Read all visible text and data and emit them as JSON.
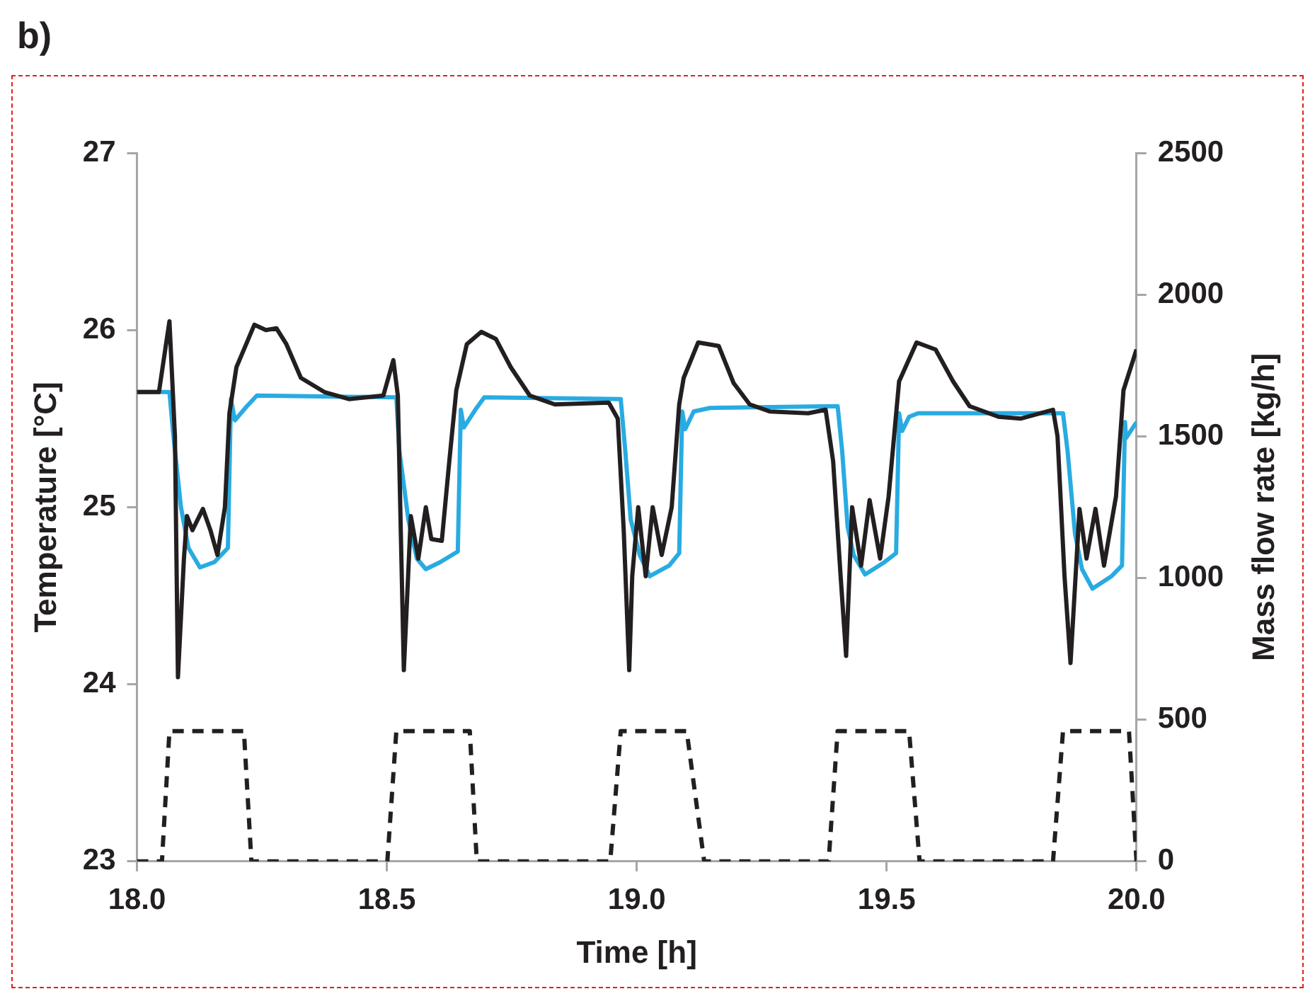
{
  "chart_data": {
    "type": "line",
    "xlabel": "Time [h]",
    "ylabel": "Temperature [°C]",
    "y2label": "Mass flow rate [kg/h]",
    "annotations": [
      "b)"
    ],
    "xlim": [
      18,
      20
    ],
    "xticks": [
      {
        "value": 18,
        "label": "18.0"
      },
      {
        "value": 18.5,
        "label": "18.5"
      },
      {
        "value": 19,
        "label": "19.0"
      },
      {
        "value": 19.5,
        "label": "19.5"
      },
      {
        "value": 20,
        "label": "20.0"
      }
    ],
    "ylim": [
      23,
      27
    ],
    "yticks": [
      23,
      24,
      25,
      26,
      27
    ],
    "y2lim": [
      0,
      2500
    ],
    "y2ticks": [
      0,
      500,
      1000,
      1500,
      2000,
      2500
    ],
    "grid": false,
    "legend": false,
    "marker": "none",
    "series": [
      {
        "color": "#231f20",
        "line_style": "solid",
        "x": [
          18,
          18.044,
          18.065,
          18.076,
          18.082,
          18.094,
          18.1,
          18.111,
          18.132,
          18.147,
          18.161,
          18.176,
          18.185,
          18.199,
          18.235,
          18.258,
          18.279,
          18.299,
          18.328,
          18.375,
          18.425,
          18.493,
          18.513,
          18.522,
          18.534,
          18.548,
          18.563,
          18.578,
          18.589,
          18.61,
          18.625,
          18.639,
          18.66,
          18.689,
          18.718,
          18.748,
          18.786,
          18.836,
          18.944,
          18.962,
          18.974,
          18.985,
          18.991,
          19.003,
          19.018,
          19.032,
          19.05,
          19.07,
          19.085,
          19.094,
          19.123,
          19.164,
          19.194,
          19.226,
          19.267,
          19.343,
          19.378,
          19.393,
          19.408,
          19.419,
          19.431,
          19.449,
          19.466,
          19.487,
          19.504,
          19.525,
          19.56,
          19.598,
          19.633,
          19.666,
          19.724,
          19.768,
          19.833,
          19.842,
          19.856,
          19.868,
          19.886,
          19.9,
          19.918,
          19.935,
          19.959,
          19.974,
          20
        ],
        "values": [
          25.65,
          25.65,
          26.05,
          25.4,
          24.04,
          24.71,
          24.95,
          24.87,
          24.99,
          24.87,
          24.73,
          25,
          25.53,
          25.79,
          26.03,
          26,
          26.01,
          25.92,
          25.73,
          25.65,
          25.61,
          25.63,
          25.83,
          25.63,
          24.08,
          24.95,
          24.71,
          25,
          24.82,
          24.81,
          25.26,
          25.66,
          25.92,
          25.99,
          25.95,
          25.79,
          25.63,
          25.58,
          25.59,
          25.5,
          24.87,
          24.08,
          24.61,
          25,
          24.61,
          25,
          24.73,
          25,
          25.58,
          25.73,
          25.93,
          25.91,
          25.7,
          25.58,
          25.54,
          25.53,
          25.55,
          25.26,
          24.61,
          24.16,
          25,
          24.67,
          25.04,
          24.71,
          25.06,
          25.71,
          25.93,
          25.89,
          25.71,
          25.57,
          25.51,
          25.5,
          25.55,
          25.4,
          24.61,
          24.12,
          24.99,
          24.71,
          24.99,
          24.67,
          25.06,
          25.66,
          25.89
        ]
      },
      {
        "color": "#29abe2",
        "line_style": "solid",
        "x": [
          18,
          18.065,
          18.073,
          18.088,
          18.103,
          18.126,
          18.155,
          18.182,
          18.188,
          18.196,
          18.22,
          18.24,
          18.519,
          18.525,
          18.543,
          18.56,
          18.578,
          18.607,
          18.642,
          18.648,
          18.654,
          18.677,
          18.695,
          18.968,
          18.977,
          18.988,
          19.006,
          19.026,
          19.065,
          19.085,
          19.091,
          19.097,
          19.114,
          19.147,
          19.402,
          19.411,
          19.422,
          19.434,
          19.457,
          19.496,
          19.519,
          19.525,
          19.531,
          19.545,
          19.563,
          19.853,
          19.862,
          19.877,
          19.891,
          19.912,
          19.95,
          19.971,
          19.977,
          19.979,
          20
        ],
        "values": [
          25.65,
          25.65,
          25.4,
          25,
          24.77,
          24.66,
          24.69,
          24.77,
          25.61,
          25.49,
          25.57,
          25.63,
          25.62,
          25.32,
          24.93,
          24.71,
          24.65,
          24.69,
          24.75,
          25.55,
          25.45,
          25.55,
          25.62,
          25.61,
          25.32,
          24.93,
          24.73,
          24.61,
          24.67,
          24.74,
          25.54,
          25.44,
          25.54,
          25.56,
          25.57,
          25.32,
          24.89,
          24.73,
          24.62,
          24.69,
          24.74,
          25.53,
          25.43,
          25.51,
          25.53,
          25.53,
          25.32,
          24.85,
          24.65,
          24.54,
          24.61,
          24.67,
          25.48,
          25.39,
          25.48
        ]
      },
      {
        "color": "#231f20",
        "line_style": "dashed",
        "axis": "y2",
        "x": [
          18,
          18.05,
          18.065,
          18.214,
          18.229,
          18.501,
          18.519,
          18.666,
          18.68,
          18.947,
          18.968,
          19.1,
          19.135,
          19.384,
          19.402,
          19.545,
          19.566,
          19.833,
          19.853,
          19.985,
          20
        ],
        "values": [
          0,
          0,
          460,
          460,
          0,
          0,
          460,
          460,
          0,
          0,
          460,
          460,
          0,
          0,
          460,
          460,
          0,
          0,
          460,
          460,
          0
        ]
      }
    ]
  }
}
